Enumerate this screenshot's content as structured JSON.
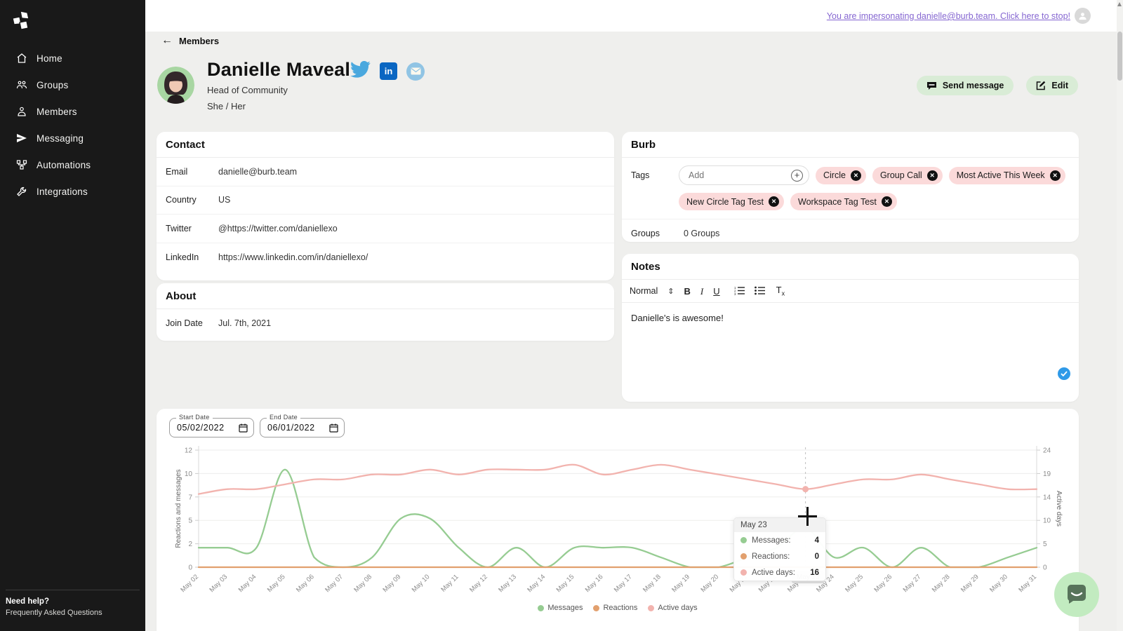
{
  "topbar": {
    "impersonation": "You are impersonating danielle@burb.team. Click here to stop!"
  },
  "sidebar": {
    "items": [
      {
        "label": "Home",
        "icon": "home-icon"
      },
      {
        "label": "Groups",
        "icon": "groups-icon"
      },
      {
        "label": "Members",
        "icon": "members-icon"
      },
      {
        "label": "Messaging",
        "icon": "messaging-icon"
      },
      {
        "label": "Automations",
        "icon": "automations-icon"
      },
      {
        "label": "Integrations",
        "icon": "integrations-icon"
      }
    ],
    "help": {
      "title": "Need help?",
      "link": "Frequently Asked Questions"
    }
  },
  "breadcrumb": {
    "back_icon": "←",
    "label": "Members"
  },
  "profile": {
    "name": "Danielle Maveal",
    "role": "Head of Community",
    "pronouns": "She / Her",
    "linkedin_text": "in",
    "social_icons": [
      "twitter-icon",
      "linkedin-icon",
      "email-icon"
    ]
  },
  "actions": {
    "send_message": "Send message",
    "edit": "Edit"
  },
  "contact": {
    "title": "Contact",
    "rows": [
      {
        "label": "Email",
        "value": "danielle@burb.team"
      },
      {
        "label": "Country",
        "value": "US"
      },
      {
        "label": "Twitter",
        "value": "@https://twitter.com/daniellexo"
      },
      {
        "label": "LinkedIn",
        "value": "https://www.linkedin.com/in/daniellexo/"
      }
    ]
  },
  "about": {
    "title": "About",
    "rows": [
      {
        "label": "Join Date",
        "value": "Jul. 7th, 2021"
      }
    ]
  },
  "burb": {
    "title": "Burb",
    "tags_label": "Tags",
    "add_placeholder": "Add",
    "add_icon": "+",
    "remove_icon": "✕",
    "tags": [
      "Circle",
      "Group Call",
      "Most Active This Week",
      "New Circle Tag Test",
      "Workspace Tag Test"
    ],
    "groups_label": "Groups",
    "groups_value": "0 Groups"
  },
  "notes": {
    "title": "Notes",
    "toolbar": {
      "style": "Normal",
      "updown_icon": "⇕",
      "bold": "B",
      "italic": "I",
      "underline": "U",
      "clear_main": "T",
      "clear_sub": "x"
    },
    "content": "Danielle's is awesome!"
  },
  "chart_card": {
    "start_label": "Start Date",
    "start_value": "05/02/2022",
    "end_label": "End Date",
    "end_value": "06/01/2022"
  },
  "colors": {
    "messages_green": "#96cc92",
    "reactions_orange": "#e2a06e",
    "active_days_pink": "#f2b3ae",
    "accent_purple": "#8566d1",
    "button_green": "#d9ecd6",
    "tag_pink": "#fbdada"
  },
  "chart_data": {
    "type": "line",
    "categories": [
      "May 02",
      "May 03",
      "May 04",
      "May 05",
      "May 06",
      "May 07",
      "May 08",
      "May 09",
      "May 10",
      "May 11",
      "May 12",
      "May 13",
      "May 14",
      "May 15",
      "May 16",
      "May 17",
      "May 18",
      "May 19",
      "May 20",
      "May 21",
      "May 22",
      "May 23",
      "May 24",
      "May 25",
      "May 26",
      "May 27",
      "May 28",
      "May 29",
      "May 30",
      "May 31"
    ],
    "series": [
      {
        "name": "Messages",
        "axis": "left",
        "color": "#96cc92",
        "values": [
          2,
          2,
          2,
          10,
          1,
          0,
          1,
          5,
          5,
          2,
          0,
          2,
          0,
          2,
          2,
          2,
          1,
          0,
          0,
          1,
          2,
          4,
          1,
          2,
          0,
          2,
          0,
          0,
          1,
          2
        ]
      },
      {
        "name": "Reactions",
        "axis": "left",
        "color": "#e2a06e",
        "values": [
          0,
          0,
          0,
          0,
          0,
          0,
          0,
          0,
          0,
          0,
          0,
          0,
          0,
          0,
          0,
          0,
          0,
          0,
          0,
          0,
          0,
          0,
          0,
          0,
          0,
          0,
          0,
          0,
          0,
          0
        ]
      },
      {
        "name": "Active days",
        "axis": "right",
        "color": "#f2b3ae",
        "values": [
          15,
          16,
          16,
          17,
          18,
          18,
          19,
          19,
          20,
          19,
          20,
          20,
          20,
          21,
          19,
          20,
          21,
          20,
          19,
          18,
          17,
          16,
          17,
          18,
          18,
          19,
          18,
          17,
          16,
          16
        ]
      }
    ],
    "y_left": {
      "title": "Reactions and messages",
      "ticks": [
        12,
        10,
        7,
        5,
        2,
        0
      ],
      "max": 12
    },
    "y_right": {
      "title": "Active days",
      "ticks": [
        24,
        19,
        14,
        10,
        5,
        0
      ],
      "max": 24
    },
    "grid": true,
    "legend_position": "bottom",
    "highlight": {
      "index": 21,
      "label": "May 23",
      "dot_series": [
        "Messages",
        "Active days"
      ]
    },
    "tooltip": {
      "date": "May 23",
      "rows": [
        {
          "label": "Messages:",
          "value": "4",
          "color": "#96cc92"
        },
        {
          "label": "Reactions:",
          "value": "0",
          "color": "#e2a06e"
        },
        {
          "label": "Active days:",
          "value": "16",
          "color": "#f2b3ae"
        }
      ]
    }
  }
}
